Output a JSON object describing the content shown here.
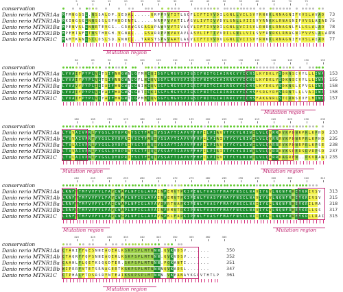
{
  "colors": {
    "identical": "#1e8f2e",
    "strong": "#9ed24a",
    "weak": "#f3f34c",
    "none": "#ffffff",
    "mutation": "#c0226e",
    "marker": "#d6337e"
  },
  "labels": {
    "conservation": "conservation",
    "mutation_region": "Mutation region"
  },
  "species": [
    "Danio rerio MTNR1Aa",
    "Danio rerio MTNR1Ab",
    "Danio rerio MTNR1Ba",
    "Danio rerio MTNR1Bb",
    "Danio rerio MTNR1C"
  ],
  "blocks": [
    {
      "ticks": [
        "5",
        "10",
        "15",
        "20",
        "25",
        "30",
        "35",
        "40",
        "45",
        "50",
        "55",
        "60",
        "65",
        "70",
        "75"
      ],
      "rows": [
        "MFMNGSSL.NSSALDP.SEQAL.....QRPPVVTITLGCFLIFTIVVDILGNLLVILSVYRNKKLRNAGNIFVVSLAVAD",
        "MKINGSGLNNSSSLSFHDDENTL.....NRPPVVATILAGVLIVTIVVDVLGNLLVIISVYRNKKLRNAGNIFVVSLAIAD",
        "MPENVSLLNNRTEVGG..GRAWGSGAGAPAWVVVTIVAGVLIFTIVVDILGNLLVIISVLRNRKLRNAGNLFLLSLALAD",
        "MPEHIAFLTNSTHDGH.VGNAL...GSARRPPWVAVAVLASVLIFTIVVDILGNLLVILSVFRNRKLRNAGNIFVVSLALAD",
        "MAMTKANLSCLDSLSQ.GNNCL..TARSTSPGVAATLAGVLIFTIVVDVLGNLLVIISVYRNKKLRNAGNIFVVSLAIAD"
      ],
      "ends": [
        "73",
        "75",
        "78",
        "78",
        "77"
      ],
      "mutation": [
        {
          "label": "Mutation region"
        }
      ]
    },
    {
      "ticks": [
        "80",
        "85",
        "90",
        "95",
        "100",
        "105",
        "110",
        "115",
        "120",
        "125",
        "130",
        "135",
        "140",
        "145",
        "150",
        "155"
      ],
      "rows": [
        "LVVAIFPYPLVLTSIFNRGWNLGYMHCQISGFLMGVSVIGSIFNITGIAINRCVYICHSLKYDKLYSDKNSCVYLLLIWA",
        "LVVAIYPYPLVLTSIFNNGWNLGYLHCQVSGFLMGVSVIGSIFNITGIAINRCVYICHSLKYDKLYSDKNSCVYLLLIWA",
        "LVVAVYPYPLILIAIFHNGWTLGNIHCQVSGFLMGVSVIGSIFNITGIAINRCVYICHSLKYDKLYSDKNSLCFVGLIWA",
        "LVVAIYPYPLVLYAIFHDGWSLGETCCKISGFLMGVSVIGSIFNITGIAINRCVYICHSFSRGYRFSRRNTLLLVAIIWA",
        "LVVAIFPYPLVLYAIFHNGWTLGPMHCQVSGFLMGVSVIGSIFNITGIAINRCVYICHSFAKGNRLSTCRNSVVFLMIWA"
      ],
      "ends": [
        "153",
        "155",
        "158",
        "158",
        "157"
      ],
      "mutation": [
        {
          "label": "Mutation region"
        }
      ]
    },
    {
      "ticks": [
        "160",
        "165",
        "170",
        "175",
        "180",
        "185",
        "190",
        "195",
        "200",
        "205",
        "210",
        "215",
        "220",
        "225",
        "230",
        "235"
      ],
      "rows": [
        "LTVVAIVPNLFVGSLQYDPRVYSCTFAQSVSSAYTIAVVFFHFILPIAVVTYCYLRIWILVLQVRRRVKPDNRPRLKPHD",
        "LTVVAIVPNFFVGSLQYDPRIYSCTFAQSVSSAYTIAVVFFHFLLPIAIVTYCYLRIWILVLQVRRRVKPDNRPRLKPHD",
        "LTVLAIVPNLFVGSLQYDPRIYSCTFAQSVSSAYTIAVVFFHFILPIAVVTYCYLRIWILVLQARRRVKPDNRPRLKPSE",
        "LTVVAIVPNLFVGSLQYDPRVYSCTFTQSVSSAYTIAVVFFHFILPIAIVTYCYLRIWVLVLQVRRKVKSEERSRVRPSD",
        "LTVLAIVPNLFVGSLQYDPRIYSCTFAQTVSSAYTIAVVFFHFLLPIGVVTYCYLRIWILVLQARRKAGRPN..PKVRAAI"
      ],
      "ends": [
        "233",
        "235",
        "238",
        "237",
        "235"
      ],
      "mutation": [
        {
          "label": "Mutation region"
        },
        {
          "label": "Mutation region"
        }
      ]
    },
    {
      "ticks": [
        "240",
        "245",
        "250",
        "255",
        "260",
        "265",
        "270",
        "275",
        "280",
        "285",
        "290",
        "295",
        "300",
        "305",
        "310",
        "315"
      ],
      "rows": [
        "LRNFVTMFVVFVLFAVCWAPLNFIGLAVAINPEMVTPKIPEWLFVASYFMAYFNSCLNAVIYGVLNQNFRKEYKRIVSV",
        "LRNFVTMFVVFVLFAVCWAPLNFIGLAVAINPEMVTPKIPEWLFVASYFMAYFNSCLNAVIYGVLNQNFRKEYKRIVSV",
        "LRNFVTMFVVFVLFAICWAPLNFIGLAVAVDPRTVAPKIPEWLFVASYFMAYFNSCLNAIIYGLLNQNFRKEYKRILMA",
        "LRNFLTMFVVFVLFAVCWAPLNFIGLAVAINPEMVTRKIPEWLFVASYFMAYFNSCLNAVIYGVLNQNFRKEYKRLLSS",
        "LRNFVTMFVVFVLFAVCWGPLNFIGLAVAVNPKLFAPKIPEWLFVASYFMAYFNSCLNAIIYGLLNQNFRREYKRLLRAI"
      ],
      "ends": [
        "313",
        "315",
        "318",
        "317",
        "315"
      ],
      "mutation": [
        {
          "label": "Mutation region"
        },
        {
          "label": "Mutation region"
        }
      ]
    },
    {
      "ticks": [
        "320",
        "325",
        "330",
        "335",
        "340",
        "345",
        "350",
        "355",
        "360",
        "365"
      ],
      "rows": [
        "CTARIFFGESNNEAQERLKSKPSPLMTNNN.QVKVDSV.......",
        "CTAQRFFQPSNNEAQERLKSKPSPLMTNNN.QVKVDSV.......",
        "CAAHLFLQETKSQGDTER.SKPSPLMTNNN.PQKANTI.......",
        "WIPRRFVTETSRNAGERTKSKPSPLMTNNNNQVKADSL.......",
        "CTPHALFTDSRSRYNTEAIKSKPSPLMTNNN.VKEANAYKGGVTHTLP"
      ],
      "ends": [
        "350",
        "352",
        "351",
        "347",
        "361"
      ],
      "mutation": [
        {
          "label": "Mutation region"
        }
      ]
    }
  ]
}
